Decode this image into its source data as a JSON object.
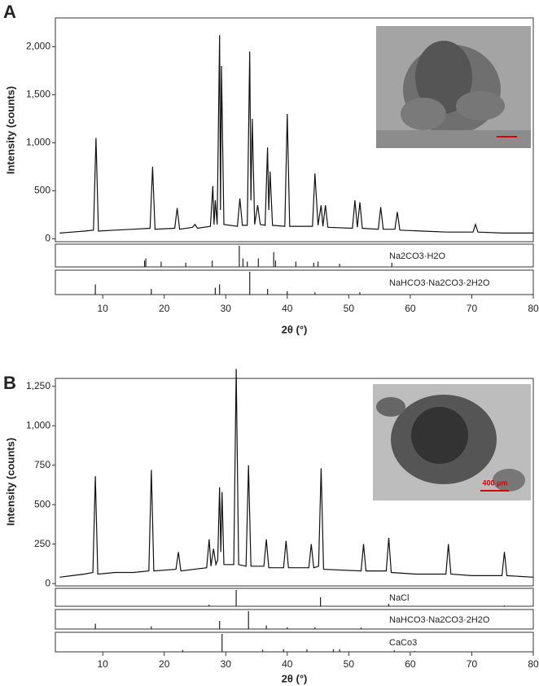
{
  "chart_data": [
    {
      "type": "line",
      "panel_label": "A",
      "x_label": "2θ (°)",
      "y_label": "Intensity (counts)",
      "color": "#111111",
      "xlim": [
        2.3,
        80
      ],
      "xticks": [
        10,
        20,
        30,
        40,
        50,
        60,
        70,
        80
      ],
      "ylim": [
        -30,
        2300
      ],
      "yticks": [
        0,
        500,
        {
          "value": 1000,
          "label": "1,000"
        },
        {
          "value": 1500,
          "label": "1,500"
        },
        {
          "value": 2000,
          "label": "2,000"
        }
      ],
      "x": [
        3,
        5,
        7,
        8.5,
        8.9,
        9.3,
        12,
        15,
        17.7,
        18.1,
        18.5,
        21.7,
        22.1,
        22.5,
        24.6,
        25,
        25.4,
        27.5,
        27.9,
        28.1,
        28.3,
        28.6,
        29.0,
        29.15,
        29.3,
        29.7,
        31.9,
        32.3,
        32.7,
        33.5,
        33.9,
        34.1,
        34.3,
        34.7,
        35.2,
        35.6,
        36.4,
        36.8,
        37.0,
        37.2,
        37.6,
        39.6,
        40.0,
        40.4,
        44.1,
        44.5,
        45.0,
        45.5,
        45.8,
        46.2,
        46.6,
        50.6,
        51.0,
        51.4,
        51.8,
        52.2,
        54.8,
        55.2,
        55.6,
        57.5,
        57.9,
        58.3,
        62,
        66,
        70.2,
        70.6,
        71,
        75,
        80
      ],
      "values": [
        60,
        70,
        80,
        90,
        1050,
        80,
        90,
        100,
        110,
        750,
        100,
        110,
        320,
        100,
        120,
        150,
        110,
        130,
        550,
        150,
        400,
        150,
        2120,
        300,
        1800,
        150,
        130,
        420,
        140,
        140,
        1950,
        400,
        1250,
        150,
        350,
        150,
        140,
        950,
        300,
        700,
        140,
        130,
        1300,
        130,
        130,
        680,
        140,
        350,
        130,
        350,
        120,
        110,
        400,
        120,
        380,
        110,
        100,
        330,
        100,
        100,
        280,
        90,
        80,
        70,
        70,
        150,
        70,
        60,
        60
      ],
      "references": [
        {
          "name": "Na2CO3·H2O",
          "x": [
            16.8,
            17.0,
            19.5,
            23.5,
            27.8,
            32.2,
            32.8,
            33.5,
            35.3,
            37.8,
            38.1,
            41.4,
            44.3,
            45.0,
            48.5,
            57.0
          ],
          "values": [
            30,
            40,
            25,
            20,
            30,
            100,
            40,
            25,
            40,
            70,
            30,
            25,
            20,
            25,
            15,
            20
          ]
        },
        {
          "name": "NaHCO3·Na2CO3·2H2O",
          "x": [
            8.8,
            17.9,
            28.3,
            29.0,
            33.9,
            36.8,
            40.0,
            44.5,
            51.8
          ],
          "values": [
            45,
            25,
            30,
            45,
            100,
            25,
            15,
            10,
            10
          ]
        }
      ]
    },
    {
      "type": "line",
      "panel_label": "B",
      "x_label": "2θ (°)",
      "y_label": "Intensity (counts)",
      "color": "#111111",
      "xlim": [
        2.3,
        80
      ],
      "xticks": [
        10,
        20,
        30,
        40,
        50,
        60,
        70,
        80
      ],
      "ylim": [
        -15,
        1300
      ],
      "yticks": [
        0,
        250,
        500,
        750,
        {
          "value": 1000,
          "label": "1,000"
        },
        {
          "value": 1250,
          "label": "1,250"
        }
      ],
      "inset_scale_label": "400 μm",
      "x": [
        3,
        5,
        7,
        8.4,
        8.8,
        9.2,
        12,
        15,
        17.5,
        17.9,
        18.3,
        21.9,
        22.3,
        22.7,
        26.9,
        27.3,
        27.6,
        28.0,
        28.4,
        28.7,
        29.0,
        29.2,
        29.4,
        29.7,
        31.3,
        31.7,
        32.1,
        33.3,
        33.7,
        34.1,
        36.2,
        36.6,
        37.0,
        39.4,
        39.8,
        40.2,
        43.5,
        43.9,
        44.3,
        45.1,
        45.5,
        45.9,
        52.0,
        52.4,
        52.8,
        56.1,
        56.5,
        56.9,
        61,
        65.8,
        66.2,
        66.6,
        70,
        74.9,
        75.3,
        75.7,
        80
      ],
      "values": [
        40,
        50,
        60,
        70,
        680,
        60,
        70,
        70,
        80,
        720,
        80,
        90,
        200,
        80,
        100,
        280,
        110,
        220,
        120,
        150,
        610,
        200,
        580,
        120,
        120,
        1360,
        120,
        110,
        750,
        110,
        110,
        280,
        100,
        100,
        270,
        100,
        100,
        250,
        100,
        110,
        730,
        90,
        80,
        250,
        80,
        80,
        290,
        70,
        60,
        60,
        250,
        60,
        50,
        50,
        200,
        50,
        40
      ],
      "references": [
        {
          "name": "NaCl",
          "x": [
            27.3,
            31.7,
            45.4,
            56.5,
            75.3
          ],
          "values": [
            10,
            100,
            55,
            15,
            5
          ]
        },
        {
          "name": "NaHCO3·Na2CO3·2H2O",
          "x": [
            8.8,
            17.9,
            29.0,
            33.7,
            36.6,
            40.0,
            44.5,
            52.0
          ],
          "values": [
            30,
            15,
            45,
            100,
            20,
            10,
            10,
            8
          ]
        },
        {
          "name": "CaCo3",
          "x": [
            23.0,
            29.4,
            36.0,
            39.4,
            43.2,
            47.5,
            48.5,
            57.4,
            60.7
          ],
          "values": [
            10,
            100,
            12,
            15,
            15,
            15,
            15,
            8,
            5
          ]
        }
      ]
    }
  ]
}
